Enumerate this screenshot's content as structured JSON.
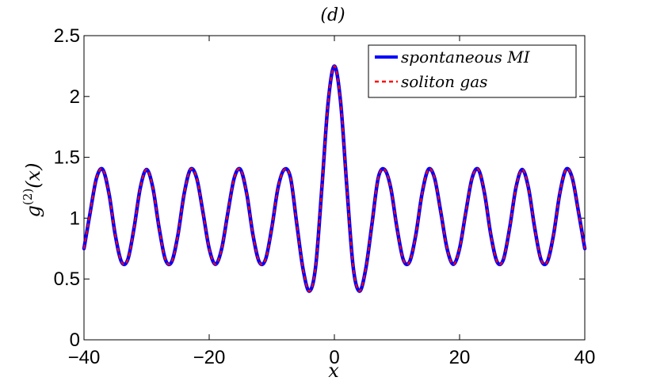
{
  "chart_data": {
    "type": "line",
    "title": "(d)",
    "xlabel": "x",
    "ylabel_base": "g",
    "ylabel_sup": "(2)",
    "ylabel_arg": "(x)",
    "xlim": [
      -40,
      40
    ],
    "ylim": [
      0,
      2.5
    ],
    "xticks": [
      -40,
      -20,
      0,
      20,
      40
    ],
    "xtick_labels": [
      "−40",
      "−20",
      "0",
      "20",
      "40"
    ],
    "yticks": [
      0,
      0.5,
      1,
      1.5,
      2,
      2.5
    ],
    "ytick_labels": [
      "0",
      "0.5",
      "1",
      "1.5",
      "2",
      "2.5"
    ],
    "grid": false,
    "legend_position": "top-right",
    "series": [
      {
        "name": "spontaneous MI",
        "color": "#0000ff",
        "style": "solid",
        "x": [
          -40,
          -39,
          -38,
          -37,
          -36,
          -35,
          -34,
          -33,
          -32,
          -31,
          -30,
          -29,
          -28,
          -27,
          -26,
          -25,
          -24,
          -23,
          -22,
          -21,
          -20,
          -19,
          -18,
          -17,
          -16,
          -15,
          -14,
          -13,
          -12,
          -11,
          -10,
          -9,
          -8,
          -7,
          -6,
          -5,
          -4,
          -3,
          -2,
          -1,
          0,
          1,
          2,
          3,
          4,
          5,
          6,
          7,
          8,
          9,
          10,
          11,
          12,
          13,
          14,
          15,
          16,
          17,
          18,
          19,
          20,
          21,
          22,
          23,
          24,
          25,
          26,
          27,
          28,
          29,
          30,
          31,
          32,
          33,
          34,
          35,
          36,
          37,
          38,
          39,
          40
        ],
        "y": [
          0.75,
          1.05,
          1.33,
          1.4,
          1.2,
          0.86,
          0.64,
          0.66,
          0.92,
          1.25,
          1.4,
          1.25,
          0.92,
          0.66,
          0.64,
          0.86,
          1.2,
          1.4,
          1.33,
          1.05,
          0.75,
          0.62,
          0.75,
          1.05,
          1.33,
          1.4,
          1.2,
          0.86,
          0.64,
          0.66,
          0.92,
          1.25,
          1.4,
          1.33,
          0.95,
          0.58,
          0.4,
          0.6,
          1.25,
          1.95,
          2.25,
          1.95,
          1.25,
          0.6,
          0.4,
          0.58,
          0.95,
          1.33,
          1.4,
          1.25,
          0.92,
          0.66,
          0.64,
          0.86,
          1.2,
          1.4,
          1.33,
          1.05,
          0.75,
          0.62,
          0.75,
          1.05,
          1.33,
          1.4,
          1.2,
          0.86,
          0.64,
          0.66,
          0.92,
          1.25,
          1.4,
          1.25,
          0.92,
          0.66,
          0.64,
          0.86,
          1.2,
          1.4,
          1.33,
          1.05,
          0.75
        ]
      },
      {
        "name": "soliton gas",
        "color": "#ff0000",
        "style": "dashed",
        "x": [
          -40,
          -39,
          -38,
          -37,
          -36,
          -35,
          -34,
          -33,
          -32,
          -31,
          -30,
          -29,
          -28,
          -27,
          -26,
          -25,
          -24,
          -23,
          -22,
          -21,
          -20,
          -19,
          -18,
          -17,
          -16,
          -15,
          -14,
          -13,
          -12,
          -11,
          -10,
          -9,
          -8,
          -7,
          -6,
          -5,
          -4,
          -3,
          -2,
          -1,
          0,
          1,
          2,
          3,
          4,
          5,
          6,
          7,
          8,
          9,
          10,
          11,
          12,
          13,
          14,
          15,
          16,
          17,
          18,
          19,
          20,
          21,
          22,
          23,
          24,
          25,
          26,
          27,
          28,
          29,
          30,
          31,
          32,
          33,
          34,
          35,
          36,
          37,
          38,
          39,
          40
        ],
        "y": [
          0.75,
          1.05,
          1.33,
          1.4,
          1.2,
          0.86,
          0.64,
          0.66,
          0.92,
          1.25,
          1.4,
          1.25,
          0.92,
          0.66,
          0.64,
          0.86,
          1.2,
          1.4,
          1.33,
          1.05,
          0.75,
          0.62,
          0.75,
          1.05,
          1.33,
          1.4,
          1.2,
          0.86,
          0.64,
          0.66,
          0.92,
          1.25,
          1.4,
          1.33,
          0.95,
          0.58,
          0.4,
          0.6,
          1.25,
          1.95,
          2.25,
          1.95,
          1.25,
          0.6,
          0.4,
          0.58,
          0.95,
          1.33,
          1.4,
          1.25,
          0.92,
          0.66,
          0.64,
          0.86,
          1.2,
          1.4,
          1.33,
          1.05,
          0.75,
          0.62,
          0.75,
          1.05,
          1.33,
          1.4,
          1.2,
          0.86,
          0.64,
          0.66,
          0.92,
          1.25,
          1.4,
          1.25,
          0.92,
          0.66,
          0.64,
          0.86,
          1.2,
          1.4,
          1.33,
          1.05,
          0.75
        ]
      }
    ]
  }
}
